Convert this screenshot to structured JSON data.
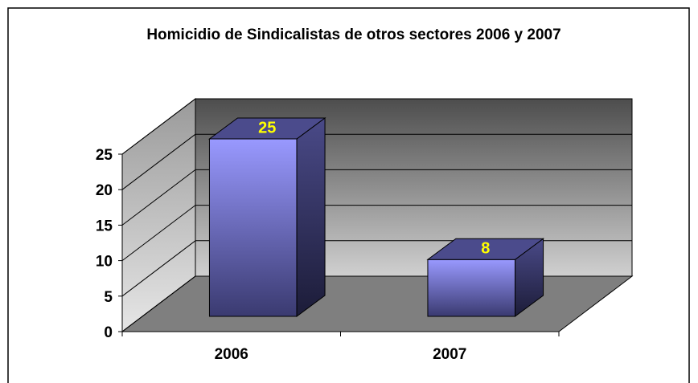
{
  "chart_data": {
    "type": "bar3d",
    "title": "Homicidio de Sindicalistas de otros sectores 2006 y 2007",
    "categories": [
      "2006",
      "2007"
    ],
    "values": [
      25,
      8
    ],
    "color": "#9999ff",
    "label_color": "#ffff00",
    "ylim": [
      0,
      25
    ],
    "yticks": [
      0,
      5,
      10,
      15,
      20,
      25
    ],
    "grid": true
  }
}
